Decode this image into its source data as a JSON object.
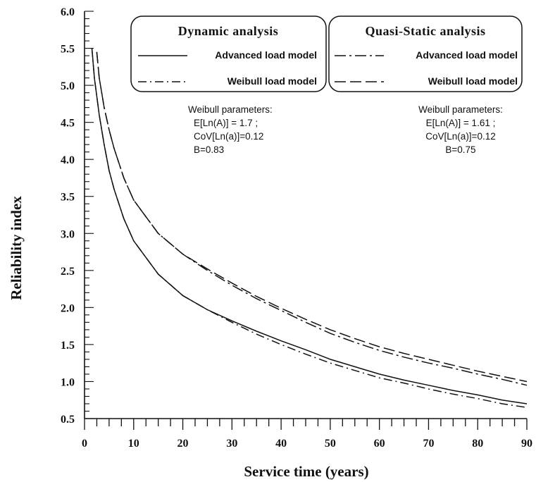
{
  "chart_data": {
    "type": "line",
    "xlabel": "Service time (years)",
    "ylabel": "Reliability index",
    "xlim": [
      0,
      90
    ],
    "ylim": [
      0.5,
      6.0
    ],
    "x_ticks": [
      0,
      10,
      20,
      30,
      40,
      50,
      60,
      70,
      80,
      90
    ],
    "y_ticks": [
      "0.5",
      "1.0",
      "1.5",
      "2.0",
      "2.5",
      "3.0",
      "3.5",
      "4.0",
      "4.5",
      "5.0",
      "5.5",
      "6.0"
    ],
    "grid": false,
    "legend_groups": [
      {
        "title": "Dynamic analysis",
        "placement": "top-center",
        "entries": [
          {
            "label": "Advanced load model",
            "series_index": 0
          },
          {
            "label": "Weibull load model",
            "series_index": 1
          }
        ],
        "notes": [
          "Weibull parameters:",
          "E[Ln(A)] = 1.7 ;",
          "CoV[Ln(a)]=0.12",
          "B=0.83"
        ]
      },
      {
        "title": "Quasi-Static analysis",
        "placement": "top-right",
        "entries": [
          {
            "label": "Advanced load model",
            "series_index": 2
          },
          {
            "label": "Weibull load model",
            "series_index": 3
          }
        ],
        "notes": [
          "Weibull parameters:",
          "E[Ln(A)] = 1.61 ;",
          "CoV[Ln(a)]=0.12",
          "B=0.75"
        ]
      }
    ],
    "series": [
      {
        "name": "Advanced load model",
        "dash": "solid",
        "points": [
          [
            1.5,
            5.5
          ],
          [
            2,
            5.1
          ],
          [
            3,
            4.6
          ],
          [
            4,
            4.2
          ],
          [
            5,
            3.85
          ],
          [
            6,
            3.6
          ],
          [
            8,
            3.2
          ],
          [
            10,
            2.9
          ],
          [
            15,
            2.45
          ],
          [
            20,
            2.16
          ],
          [
            25,
            1.97
          ],
          [
            30,
            1.82
          ],
          [
            35,
            1.68
          ],
          [
            40,
            1.55
          ],
          [
            45,
            1.43
          ],
          [
            50,
            1.3
          ],
          [
            55,
            1.2
          ],
          [
            60,
            1.1
          ],
          [
            65,
            1.02
          ],
          [
            70,
            0.95
          ],
          [
            75,
            0.88
          ],
          [
            80,
            0.82
          ],
          [
            85,
            0.75
          ],
          [
            90,
            0.7
          ]
        ]
      },
      {
        "name": "Weibull load model",
        "dash": "dash-dot",
        "points": [
          [
            1.5,
            5.5
          ],
          [
            2,
            5.1
          ],
          [
            3,
            4.6
          ],
          [
            4,
            4.2
          ],
          [
            5,
            3.85
          ],
          [
            6,
            3.6
          ],
          [
            8,
            3.2
          ],
          [
            10,
            2.9
          ],
          [
            15,
            2.45
          ],
          [
            20,
            2.16
          ],
          [
            25,
            1.97
          ],
          [
            30,
            1.8
          ],
          [
            35,
            1.64
          ],
          [
            40,
            1.5
          ],
          [
            45,
            1.37
          ],
          [
            50,
            1.25
          ],
          [
            55,
            1.15
          ],
          [
            60,
            1.05
          ],
          [
            65,
            0.98
          ],
          [
            70,
            0.9
          ],
          [
            75,
            0.83
          ],
          [
            80,
            0.77
          ],
          [
            85,
            0.7
          ],
          [
            90,
            0.65
          ]
        ]
      },
      {
        "name": "Advanced load model",
        "dash": "long-dash-dot",
        "points": [
          [
            2.5,
            5.45
          ],
          [
            3,
            5.1
          ],
          [
            4,
            4.7
          ],
          [
            5,
            4.4
          ],
          [
            6,
            4.15
          ],
          [
            8,
            3.75
          ],
          [
            10,
            3.45
          ],
          [
            15,
            3.0
          ],
          [
            20,
            2.72
          ],
          [
            25,
            2.5
          ],
          [
            30,
            2.3
          ],
          [
            35,
            2.12
          ],
          [
            40,
            1.96
          ],
          [
            45,
            1.8
          ],
          [
            50,
            1.65
          ],
          [
            55,
            1.53
          ],
          [
            60,
            1.42
          ],
          [
            65,
            1.33
          ],
          [
            70,
            1.25
          ],
          [
            75,
            1.18
          ],
          [
            80,
            1.1
          ],
          [
            85,
            1.03
          ],
          [
            90,
            0.95
          ]
        ]
      },
      {
        "name": "Weibull load model",
        "dash": "long-dash",
        "points": [
          [
            2.5,
            5.45
          ],
          [
            3,
            5.1
          ],
          [
            4,
            4.7
          ],
          [
            5,
            4.4
          ],
          [
            6,
            4.15
          ],
          [
            8,
            3.75
          ],
          [
            10,
            3.45
          ],
          [
            15,
            3.0
          ],
          [
            20,
            2.72
          ],
          [
            25,
            2.52
          ],
          [
            30,
            2.33
          ],
          [
            35,
            2.15
          ],
          [
            40,
            1.99
          ],
          [
            45,
            1.84
          ],
          [
            50,
            1.7
          ],
          [
            55,
            1.58
          ],
          [
            60,
            1.47
          ],
          [
            65,
            1.38
          ],
          [
            70,
            1.3
          ],
          [
            75,
            1.22
          ],
          [
            80,
            1.14
          ],
          [
            85,
            1.07
          ],
          [
            90,
            1.0
          ]
        ]
      }
    ]
  }
}
